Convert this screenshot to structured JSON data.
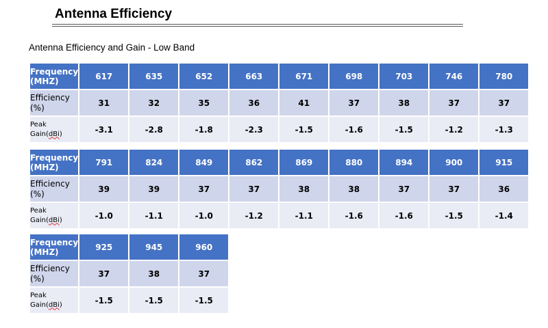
{
  "page": {
    "title": "Antenna Efficiency",
    "subtitle": "Antenna Efficiency and Gain  - Low Band"
  },
  "labels": {
    "freq_line1": "Frequency",
    "freq_line2": "(MHZ)",
    "eff_line1": "Efficiency",
    "eff_line2": "(%)",
    "gain_line1": "Peak",
    "gain_line2a": "Gain(",
    "gain_line2b": "dBi",
    "gain_line2c": ")"
  },
  "tables": [
    {
      "freq": [
        "617",
        "635",
        "652",
        "663",
        "671",
        "698",
        "703",
        "746",
        "780"
      ],
      "efficiency": [
        "31",
        "32",
        "35",
        "36",
        "41",
        "37",
        "38",
        "37",
        "37"
      ],
      "gain": [
        "-3.1",
        "-2.8",
        "-1.8",
        "-2.3",
        "-1.5",
        "-1.6",
        "-1.5",
        "-1.2",
        "-1.3"
      ]
    },
    {
      "freq": [
        "791",
        "824",
        "849",
        "862",
        "869",
        "880",
        "894",
        "900",
        "915"
      ],
      "efficiency": [
        "39",
        "39",
        "37",
        "37",
        "38",
        "38",
        "37",
        "37",
        "36"
      ],
      "gain": [
        "-1.0",
        "-1.1",
        "-1.0",
        "-1.2",
        "-1.1",
        "-1.6",
        "-1.6",
        "-1.5",
        "-1.4"
      ]
    },
    {
      "freq": [
        "925",
        "945",
        "960"
      ],
      "efficiency": [
        "37",
        "38",
        "37"
      ],
      "gain": [
        "-1.5",
        "-1.5",
        "-1.5"
      ]
    }
  ]
}
